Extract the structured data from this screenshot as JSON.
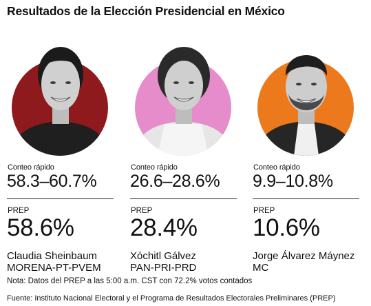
{
  "title": "Resultados de la Elección Presidencial en México",
  "chart_data": {
    "type": "table",
    "title": "Resultados de la Elección Presidencial en México",
    "columns": [
      "Conteo rápido",
      "PREP"
    ],
    "rows": [
      {
        "name": "Claudia Sheinbaum",
        "party": "MORENA-PT-PVEM",
        "quick_count": "58.3–60.7%",
        "quick_count_range": [
          58.3,
          60.7
        ],
        "prep": "58.6%",
        "prep_value": 58.6,
        "color": "#8e1a1d"
      },
      {
        "name": "Xóchitl Gálvez",
        "party": "PAN-PRI-PRD",
        "quick_count": "26.6–28.6%",
        "quick_count_range": [
          26.6,
          28.6
        ],
        "prep": "28.4%",
        "prep_value": 28.4,
        "color": "#e68ccb"
      },
      {
        "name": "Jorge Álvarez Máynez",
        "party": "MC",
        "quick_count": "9.9–10.8%",
        "quick_count_range": [
          9.9,
          10.8
        ],
        "prep": "10.6%",
        "prep_value": 10.6,
        "color": "#ec7a1c"
      }
    ]
  },
  "labels": {
    "quick": "Conteo rápido",
    "prep": "PREP"
  },
  "portrait_icon": "portrait-photo",
  "note": "Nota: Datos del PREP a las 5:00 a.m. CST con 72.2% votos contados",
  "source": "Fuente: Instituto Nacional Electoral y el Programa de Resultados Electorales Preliminares (PREP)"
}
